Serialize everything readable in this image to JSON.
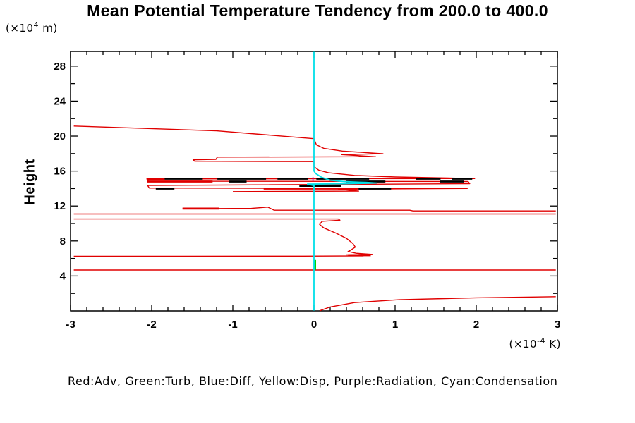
{
  "title": "Mean Potential Temperature Tendency from 200.0 to 400.0",
  "y_axis_title": "Height",
  "y_unit": {
    "pre": "(×10",
    "sup": "4",
    "post": " m)"
  },
  "x_unit": {
    "pre": "(×10",
    "sup": "-4",
    "post": " K)"
  },
  "legend_note": "Red:Adv, Green:Turb, Blue:Diff, Yellow:Disp, Purple:Radiation, Cyan:Condensation",
  "chart_data": {
    "type": "line",
    "title": "Mean Potential Temperature Tendency from 200.0 to 400.0",
    "xlabel": "(×10^-4 K)",
    "ylabel": "Height (×10^4 m)",
    "xlim": [
      -3,
      3
    ],
    "ylim": [
      0,
      29.68
    ],
    "x_ticks": [
      -3,
      -2,
      -1,
      0,
      1,
      2,
      3
    ],
    "x_minor_step": 0.2,
    "y_ticks": [
      4,
      8,
      12,
      16,
      20,
      24,
      28
    ],
    "y_minor_step": 2,
    "grid": false,
    "legend_position": "bottom-note",
    "frame_color": "#000000",
    "series": [
      {
        "name": "Adv",
        "color": "#e00000",
        "width": 1.4,
        "segments": [
          [
            [
              -2.96,
              21.15
            ],
            [
              -1.2,
              20.6
            ],
            [
              0,
              19.7
            ],
            [
              0.03,
              19.0
            ],
            [
              0.12,
              18.6
            ],
            [
              0.35,
              18.28
            ],
            [
              0.65,
              18.1
            ],
            [
              0.85,
              17.98
            ],
            [
              0.34,
              17.88
            ],
            [
              0.76,
              17.64
            ],
            [
              -1.19,
              17.6
            ],
            [
              -1.21,
              17.33
            ],
            [
              -1.49,
              17.28
            ],
            [
              -1.47,
              17.12
            ],
            [
              0,
              17.08
            ],
            [
              0,
              16.5
            ],
            [
              0.06,
              16.1
            ],
            [
              0.18,
              15.8
            ],
            [
              0.5,
              15.5
            ],
            [
              1.0,
              15.32
            ],
            [
              1.6,
              15.22
            ],
            [
              1.98,
              15.14
            ],
            [
              -2.06,
              15.1
            ],
            [
              -2.04,
              14.84
            ],
            [
              1.9,
              14.8
            ],
            [
              1.92,
              14.56
            ],
            [
              -2.05,
              14.35
            ],
            [
              -2.03,
              14.05
            ],
            [
              1.89,
              14.01
            ],
            [
              0.3,
              13.93
            ],
            [
              0.55,
              13.7
            ],
            [
              -1.0,
              13.65
            ]
          ],
          [
            [
              -1.62,
              11.69
            ],
            [
              -0.77,
              11.73
            ],
            [
              -0.57,
              11.87
            ],
            [
              -0.49,
              11.52
            ],
            [
              1.18,
              11.52
            ],
            [
              1.22,
              11.44
            ],
            [
              2.98,
              11.44
            ]
          ],
          [
            [
              -2.96,
              11.09
            ],
            [
              2.98,
              11.09
            ]
          ],
          [
            [
              -2.96,
              10.52
            ],
            [
              0.3,
              10.52
            ],
            [
              0.32,
              10.38
            ],
            [
              0.1,
              10.25
            ],
            [
              0.07,
              9.9
            ],
            [
              0.12,
              9.5
            ],
            [
              0.27,
              8.9
            ],
            [
              0.4,
              8.3
            ],
            [
              0.48,
              7.7
            ],
            [
              0.51,
              7.3
            ],
            [
              0.46,
              7.0
            ],
            [
              0.42,
              6.8
            ],
            [
              0.52,
              6.6
            ],
            [
              0.72,
              6.47
            ],
            [
              0.4,
              6.42
            ],
            [
              0.63,
              6.37
            ],
            [
              0.6,
              6.3
            ],
            [
              -0.13,
              6.27
            ],
            [
              -2.96,
              6.25
            ]
          ],
          [
            [
              -2.96,
              4.68
            ],
            [
              2.98,
              4.68
            ]
          ],
          [
            [
              0.07,
              0.02
            ],
            [
              0.2,
              0.45
            ],
            [
              0.5,
              0.95
            ],
            [
              1.05,
              1.28
            ],
            [
              2.0,
              1.5
            ],
            [
              2.98,
              1.63
            ]
          ]
        ]
      },
      {
        "name": "Adv-thick",
        "color": "#e00000",
        "width": 2.8,
        "segments": [
          [
            [
              -2.06,
              15.1
            ],
            [
              -1.84,
              15.1
            ]
          ],
          [
            [
              -2.06,
              14.8
            ],
            [
              -1.25,
              14.8
            ]
          ],
          [
            [
              -0.62,
              13.99
            ],
            [
              0.53,
              13.99
            ]
          ],
          [
            [
              -1.62,
              11.7
            ],
            [
              -1.17,
              11.7
            ]
          ],
          [
            [
              0.42,
              6.37
            ],
            [
              0.7,
              6.37
            ]
          ]
        ]
      },
      {
        "name": "overlay-black-dashes",
        "color": "#000000",
        "width": 2.8,
        "segments": [
          [
            [
              -1.84,
              15.12
            ],
            [
              -1.37,
              15.12
            ]
          ],
          [
            [
              -1.19,
              15.12
            ],
            [
              -0.59,
              15.12
            ]
          ],
          [
            [
              -0.45,
              15.12
            ],
            [
              -0.07,
              15.12
            ]
          ],
          [
            [
              0.03,
              15.12
            ],
            [
              0.68,
              15.12
            ]
          ],
          [
            [
              1.26,
              15.12
            ],
            [
              1.56,
              15.12
            ]
          ],
          [
            [
              1.7,
              15.12
            ],
            [
              1.95,
              15.12
            ]
          ],
          [
            [
              -1.05,
              14.8
            ],
            [
              -0.83,
              14.8
            ]
          ],
          [
            [
              0.4,
              14.8
            ],
            [
              0.88,
              14.8
            ]
          ],
          [
            [
              1.55,
              14.8
            ],
            [
              1.85,
              14.8
            ]
          ],
          [
            [
              -0.18,
              14.31
            ],
            [
              0.33,
              14.31
            ]
          ],
          [
            [
              -1.95,
              13.99
            ],
            [
              -1.72,
              13.99
            ]
          ],
          [
            [
              0.55,
              13.99
            ],
            [
              0.95,
              13.99
            ]
          ]
        ]
      },
      {
        "name": "Diff",
        "color": "#0000ff",
        "width": 1.5,
        "segments": []
      },
      {
        "name": "Disp",
        "color": "#e6e600",
        "width": 1.5,
        "segments": []
      },
      {
        "name": "Radiation",
        "color": "#b400be",
        "width": 1.6,
        "segments": [
          [
            [
              -0.012,
              15.3
            ],
            [
              -0.012,
              14.85
            ]
          ]
        ]
      },
      {
        "name": "Turb",
        "color": "#00d400",
        "width": 2.6,
        "segments": [
          [
            [
              0.015,
              5.82
            ],
            [
              0.015,
              4.7
            ]
          ]
        ]
      },
      {
        "name": "Condensation",
        "color": "#00dfe8",
        "width": 1.8,
        "segments": [
          [
            [
              0,
              29.65
            ],
            [
              0,
              16.0
            ],
            [
              0.02,
              15.73
            ],
            [
              0.09,
              15.3
            ],
            [
              0.2,
              14.95
            ],
            [
              0.38,
              14.78
            ],
            [
              0.64,
              14.7
            ],
            [
              0.77,
              14.63
            ],
            [
              0.4,
              14.55
            ],
            [
              -0.08,
              14.5
            ],
            [
              0,
              14.35
            ],
            [
              0,
              0.03
            ]
          ]
        ]
      }
    ]
  }
}
